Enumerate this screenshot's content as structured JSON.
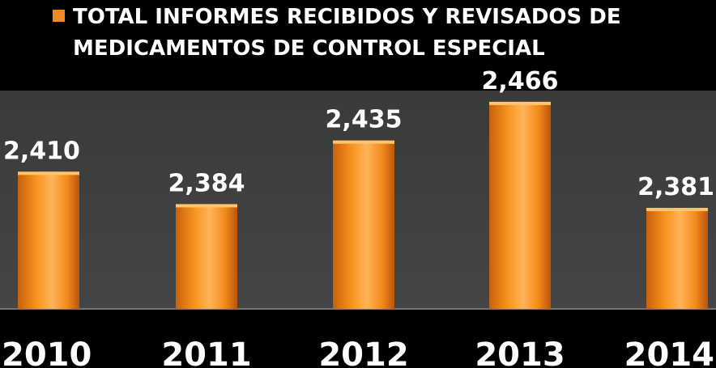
{
  "chart_data": {
    "type": "bar",
    "legend_position": "top",
    "categories": [
      "2010",
      "2011",
      "2012",
      "2013",
      "2014"
    ],
    "series": [
      {
        "name": "TOTAL INFORMES  RECIBIDOS Y REVISADOS DE MEDICAMENTOS DE CONTROL ESPECIAL",
        "values": [
          2410,
          2384,
          2435,
          2466,
          2381
        ]
      }
    ],
    "value_labels": [
      "2,410",
      "2,384",
      "2,435",
      "2,466",
      "2,381"
    ],
    "legend_lines": [
      "TOTAL INFORMES  RECIBIDOS Y REVISADOS DE",
      "MEDICAMENTOS DE CONTROL ESPECIAL"
    ],
    "ylim": [
      2300,
      2475
    ],
    "colors": {
      "bar": "#f5891f",
      "bar_highlight": "#ffc36b",
      "bar_shadow": "#b9560a",
      "plot_background": "#404040",
      "page_background": "#000000",
      "text": "#ffffff"
    }
  }
}
